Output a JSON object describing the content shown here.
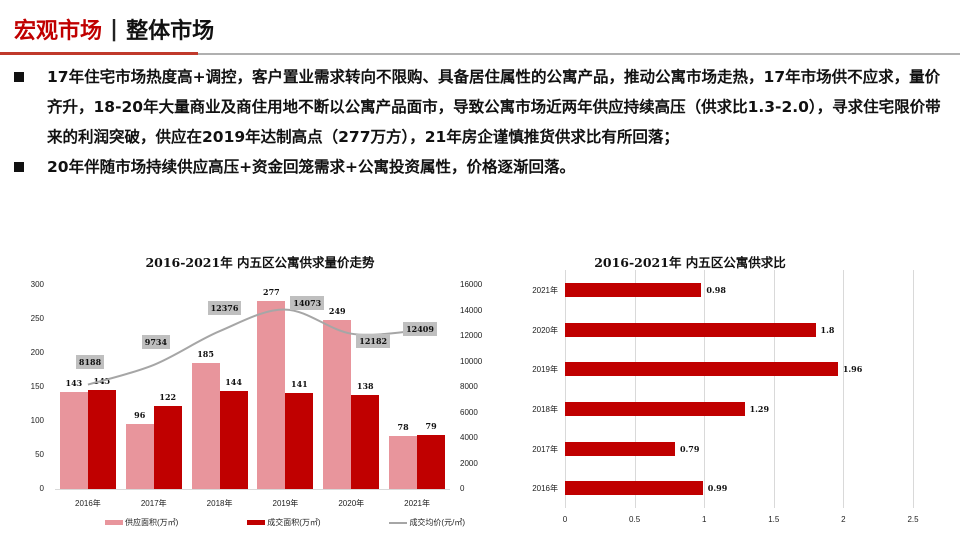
{
  "header": {
    "title_primary": "宏观市场",
    "separator": "|",
    "title_secondary": "整体市场"
  },
  "bullets": [
    {
      "text": "17年住宅市场热度高+调控，客户置业需求转向不限购、具备居住属性的公寓产品，推动公寓市场走热，17年市场供不应求，量价齐升，18-20年大量商业及商住用地不断以公寓产品面市，导致公寓市场近两年供应持续高压（供求比1.3-2.0），寻求住宅限价带来的利润突破，供应在2019年达制高点（277万方），21年房企谨慎推货供求比有所回落；"
    },
    {
      "text": "20年伴随市场持续供应高压+资金回笼需求+公寓投资属性，价格逐渐回落。"
    }
  ],
  "colors": {
    "accent_red": "#c00000",
    "supply_pink": "#e8959c",
    "price_line": "#a6a6a6",
    "label_bg": "#bfbfbf"
  },
  "chart_data": [
    {
      "type": "bar+line",
      "title": "2016-2021年 内五区公寓供求量价走势",
      "categories": [
        "2016年",
        "2017年",
        "2018年",
        "2019年",
        "2020年",
        "2021年"
      ],
      "series": [
        {
          "name": "供应面积(万㎡)",
          "type": "bar",
          "axis": "left",
          "values": [
            143,
            96,
            185,
            277,
            249,
            78
          ]
        },
        {
          "name": "成交面积(万㎡)",
          "type": "bar",
          "axis": "left",
          "values": [
            145,
            122,
            144,
            141,
            138,
            79
          ]
        },
        {
          "name": "成交均价(元/㎡)",
          "type": "line",
          "axis": "right",
          "values": [
            8188,
            9734,
            12376,
            14073,
            12182,
            12409
          ]
        }
      ],
      "y_left": {
        "min": 0,
        "max": 300,
        "ticks": [
          "0",
          "50",
          "100",
          "150",
          "200",
          "250",
          "300"
        ]
      },
      "y_right": {
        "min": 0,
        "max": 16000,
        "ticks": [
          "0",
          "2000",
          "4000",
          "6000",
          "8000",
          "10000",
          "12000",
          "14000",
          "16000"
        ]
      },
      "legend_position": "bottom",
      "grid": false
    },
    {
      "type": "bar",
      "orientation": "horizontal",
      "title": "2016-2021年 内五区公寓供求比",
      "categories": [
        "2021年",
        "2020年",
        "2019年",
        "2018年",
        "2017年",
        "2016年"
      ],
      "values": [
        0.98,
        1.8,
        1.96,
        1.29,
        0.79,
        0.99
      ],
      "value_labels": [
        "0.98",
        "1.8",
        "1.96",
        "1.29",
        "0.79",
        "0.99"
      ],
      "x_axis": {
        "min": 0,
        "max": 2.5,
        "ticks": [
          "0",
          "0.5",
          "1",
          "1.5",
          "2",
          "2.5"
        ]
      },
      "grid": true
    }
  ]
}
